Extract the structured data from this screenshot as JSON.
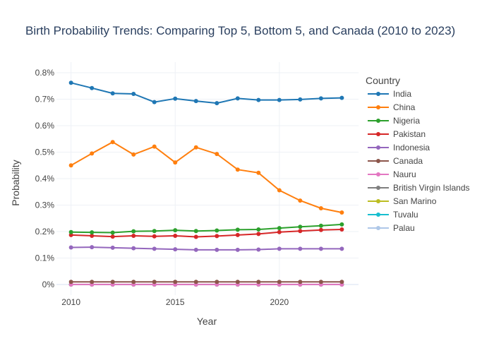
{
  "chart_data": {
    "type": "line",
    "title": "Birth Probability Trends: Comparing Top 5, Bottom 5, and Canada (2010 to 2023)",
    "xlabel": "Year",
    "ylabel": "Probability",
    "xlim": [
      2009.3,
      2023.8
    ],
    "ylim": [
      -0.0004,
      0.0084
    ],
    "x_ticks": [
      2010,
      2015,
      2020
    ],
    "y_ticks": [
      0,
      0.001,
      0.002,
      0.003,
      0.004,
      0.005,
      0.006,
      0.007,
      0.008
    ],
    "y_tick_labels": [
      "0%",
      "0.1%",
      "0.2%",
      "0.3%",
      "0.4%",
      "0.5%",
      "0.6%",
      "0.7%",
      "0.8%"
    ],
    "grid": true,
    "legend_title": "Country",
    "legend_position": "right",
    "x": [
      2010,
      2011,
      2012,
      2013,
      2014,
      2015,
      2016,
      2017,
      2018,
      2019,
      2020,
      2021,
      2022,
      2023
    ],
    "series": [
      {
        "name": "India",
        "color": "#1f77b4",
        "values": [
          0.00762,
          0.00742,
          0.00722,
          0.0072,
          0.00689,
          0.00702,
          0.00693,
          0.00685,
          0.00703,
          0.00697,
          0.00697,
          0.00699,
          0.00703,
          0.00705
        ]
      },
      {
        "name": "China",
        "color": "#ff7f0e",
        "values": [
          0.0045,
          0.00495,
          0.00538,
          0.00491,
          0.00521,
          0.00461,
          0.00518,
          0.00493,
          0.00434,
          0.00422,
          0.00356,
          0.00317,
          0.00288,
          0.00272
        ]
      },
      {
        "name": "Nigeria",
        "color": "#2ca02c",
        "values": [
          0.00198,
          0.00197,
          0.00196,
          0.00201,
          0.00202,
          0.00205,
          0.00202,
          0.00204,
          0.00207,
          0.00208,
          0.00213,
          0.00218,
          0.00222,
          0.00227
        ]
      },
      {
        "name": "Pakistan",
        "color": "#d62728",
        "values": [
          0.00187,
          0.00184,
          0.00181,
          0.00184,
          0.00182,
          0.00184,
          0.0018,
          0.00183,
          0.00187,
          0.00191,
          0.00198,
          0.00202,
          0.00206,
          0.00208
        ]
      },
      {
        "name": "Indonesia",
        "color": "#9467bd",
        "values": [
          0.0014,
          0.00141,
          0.00139,
          0.00137,
          0.00135,
          0.00133,
          0.00131,
          0.00131,
          0.00131,
          0.00132,
          0.00135,
          0.00135,
          0.00135,
          0.00135
        ]
      },
      {
        "name": "Canada",
        "color": "#8c564b",
        "values": [
          0.0001,
          0.0001,
          0.0001,
          0.0001,
          0.0001,
          0.0001,
          0.0001,
          0.0001,
          0.0001,
          0.0001,
          0.0001,
          0.0001,
          0.0001,
          0.0001
        ]
      },
      {
        "name": "Nauru",
        "color": "#e377c2",
        "values": [
          1.5e-06,
          1.5e-06,
          1.5e-06,
          1.5e-06,
          1.5e-06,
          1.5e-06,
          1.5e-06,
          1.5e-06,
          1.5e-06,
          1.5e-06,
          1.5e-06,
          1.5e-06,
          1.5e-06,
          1.5e-06
        ]
      },
      {
        "name": "British Virgin Islands",
        "color": "#7f7f7f",
        "values": [
          1.2e-06,
          1.2e-06,
          1.2e-06,
          1.2e-06,
          1.2e-06,
          1.2e-06,
          1.2e-06,
          1.2e-06,
          1.2e-06,
          1.2e-06,
          1.2e-06,
          1.2e-06,
          1.2e-06,
          1.2e-06
        ]
      },
      {
        "name": "San Marino",
        "color": "#bcbd22",
        "values": [
          3e-07,
          3e-07,
          3e-07,
          3e-07,
          3e-07,
          3e-07,
          3e-07,
          3e-07,
          3e-07,
          3e-07,
          3e-07,
          3e-07,
          3e-07,
          3e-07
        ]
      },
      {
        "name": "Tuvalu",
        "color": "#17becf",
        "values": [
          2e-07,
          2e-07,
          2e-07,
          2e-07,
          2e-07,
          2e-07,
          2e-07,
          2e-07,
          2e-07,
          2e-07,
          2e-07,
          2e-07,
          2e-07,
          2e-07
        ]
      },
      {
        "name": "Palau",
        "color": "#aec7e8",
        "values": [
          2e-07,
          2e-07,
          2e-07,
          2e-07,
          2e-07,
          2e-07,
          2e-07,
          2e-07,
          2e-07,
          2e-07,
          2e-07,
          2e-07,
          2e-07,
          2e-07
        ]
      }
    ]
  }
}
